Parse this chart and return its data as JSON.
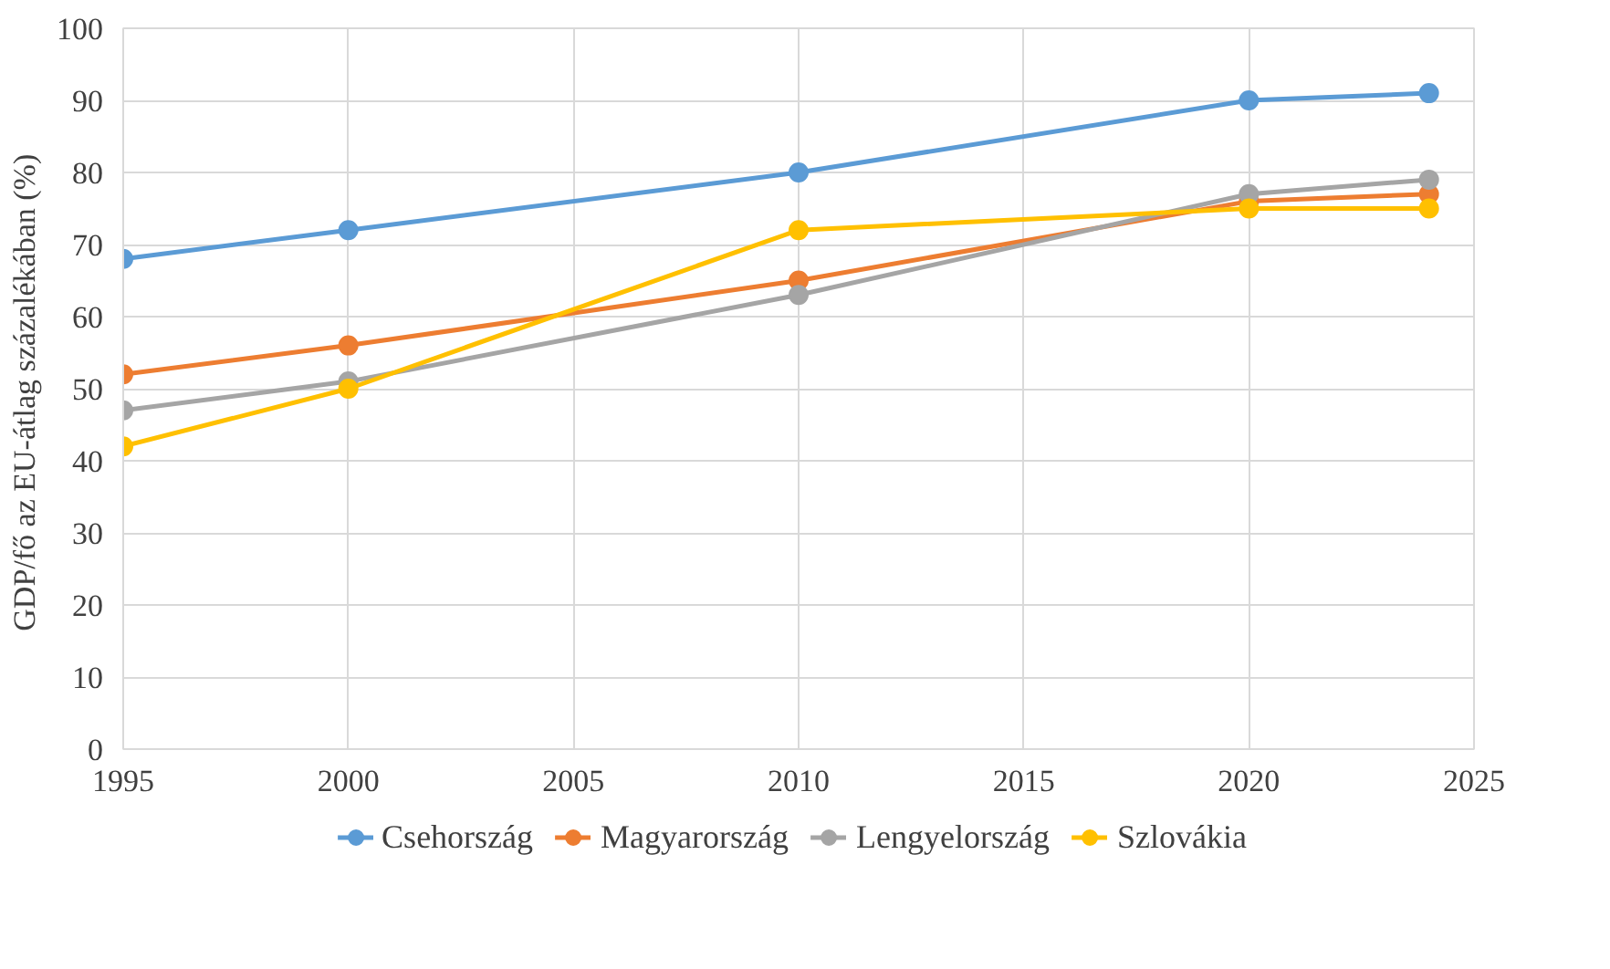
{
  "chart_data": {
    "type": "line",
    "ylabel": "GDP/fő  az EU-átlag százalékában (%)",
    "x": [
      1995,
      2000,
      2010,
      2020,
      2024
    ],
    "series": [
      {
        "name": "Csehország",
        "color": "#5b9bd5",
        "values": [
          68,
          72,
          80,
          90,
          91
        ]
      },
      {
        "name": "Magyarország",
        "color": "#ed7d31",
        "values": [
          52,
          56,
          65,
          76,
          77
        ]
      },
      {
        "name": "Lengyelország",
        "color": "#a5a5a5",
        "values": [
          47,
          51,
          63,
          77,
          79
        ]
      },
      {
        "name": "Szlovákia",
        "color": "#ffc000",
        "values": [
          42,
          50,
          72,
          75,
          75
        ]
      }
    ],
    "xlim": [
      1995,
      2025
    ],
    "xticks": [
      1995,
      2000,
      2005,
      2010,
      2015,
      2020,
      2025
    ],
    "ylim": [
      0,
      100
    ],
    "yticks": [
      0,
      10,
      20,
      30,
      40,
      50,
      60,
      70,
      80,
      90,
      100
    ],
    "grid": true,
    "legend": "bottom",
    "marker": "circle",
    "line_style": "solid"
  }
}
